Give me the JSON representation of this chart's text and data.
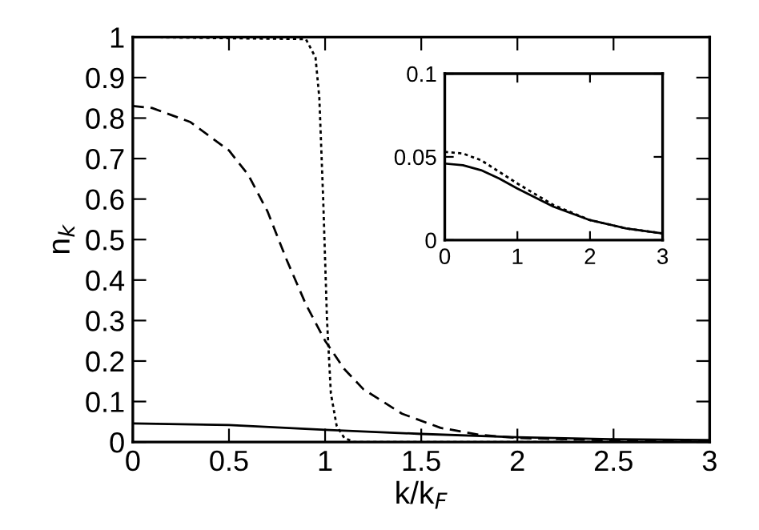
{
  "chart_data": [
    {
      "type": "line",
      "xlabel": "k/k$_{F}$",
      "ylabel": "n$_{k}$",
      "xlim": [
        0,
        3
      ],
      "ylim": [
        0,
        1
      ],
      "xticks": [
        0,
        0.5,
        1,
        1.5,
        2,
        2.5,
        3
      ],
      "yticks": [
        0,
        0.1,
        0.2,
        0.3,
        0.4,
        0.5,
        0.6,
        0.7,
        0.8,
        0.9,
        1
      ],
      "grid": false,
      "legend": false,
      "series": [
        {
          "color": "#000000",
          "line_style": "solid",
          "x": [
            0,
            0.5,
            1,
            1.5,
            2,
            2.5,
            3
          ],
          "values": [
            0.046,
            0.042,
            0.03,
            0.02,
            0.012,
            0.007,
            0.005
          ]
        },
        {
          "color": "#000000",
          "line_style": "dashed",
          "x": [
            0,
            0.1,
            0.3,
            0.5,
            0.6,
            0.7,
            0.8,
            0.9,
            1.0,
            1.1,
            1.2,
            1.4,
            1.6,
            1.8,
            2.0,
            2.5,
            3
          ],
          "values": [
            0.83,
            0.825,
            0.79,
            0.72,
            0.66,
            0.57,
            0.45,
            0.34,
            0.25,
            0.18,
            0.13,
            0.07,
            0.035,
            0.018,
            0.01,
            0.004,
            0.002
          ]
        },
        {
          "color": "#000000",
          "line_style": "dotted",
          "x": [
            0,
            0.9,
            0.95,
            0.97,
            0.99,
            1.01,
            1.03,
            1.06,
            1.1,
            1.15,
            2,
            3
          ],
          "values": [
            1,
            0.995,
            0.95,
            0.85,
            0.6,
            0.3,
            0.12,
            0.04,
            0.01,
            0,
            0,
            0
          ]
        }
      ]
    },
    {
      "type": "line",
      "xlim": [
        0,
        3
      ],
      "ylim": [
        0,
        0.1
      ],
      "xticks": [
        0,
        1,
        2,
        3
      ],
      "yticks": [
        0,
        0.05,
        0.1
      ],
      "grid": false,
      "legend": false,
      "series": [
        {
          "color": "#000000",
          "line_style": "solid",
          "x": [
            0,
            0.25,
            0.5,
            0.75,
            1,
            1.5,
            2,
            2.5,
            3
          ],
          "values": [
            0.046,
            0.045,
            0.042,
            0.037,
            0.031,
            0.02,
            0.012,
            0.007,
            0.004
          ]
        },
        {
          "color": "#000000",
          "line_style": "dotted",
          "x": [
            0,
            0.25,
            0.5,
            0.75,
            1,
            1.5,
            2,
            2.5,
            3
          ],
          "values": [
            0.053,
            0.052,
            0.048,
            0.041,
            0.034,
            0.021,
            0.012,
            0.007,
            0.004
          ]
        }
      ]
    }
  ]
}
